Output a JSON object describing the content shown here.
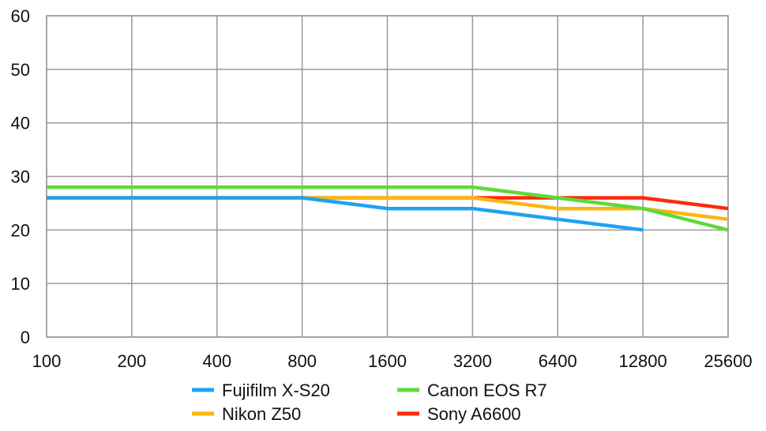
{
  "chart_data": {
    "type": "line",
    "title": "",
    "xlabel": "",
    "ylabel": "",
    "x": [
      "100",
      "200",
      "400",
      "800",
      "1600",
      "3200",
      "6400",
      "12800",
      "25600"
    ],
    "ylim": [
      0,
      60
    ],
    "yticks": [
      "0",
      "10",
      "20",
      "30",
      "40",
      "50",
      "60"
    ],
    "grid": true,
    "legend_position": "bottom",
    "series": [
      {
        "name": "Sony A6600",
        "color": "#ff2a0a",
        "values": [
          26,
          26,
          26,
          26,
          26,
          26,
          26,
          26,
          24
        ]
      },
      {
        "name": "Nikon Z50",
        "color": "#fdb60f",
        "values": [
          26,
          26,
          26,
          26,
          26,
          26,
          24,
          24,
          22
        ]
      },
      {
        "name": "Canon EOS R7",
        "color": "#5fd93a",
        "values": [
          28,
          28,
          28,
          28,
          28,
          28,
          26,
          24,
          20
        ]
      },
      {
        "name": "Fujifilm X-S20",
        "color": "#1ea2f2",
        "values": [
          26,
          26,
          26,
          26,
          24,
          24,
          22,
          20,
          null
        ]
      }
    ],
    "legend_order": [
      "Fujifilm X-S20",
      "Canon EOS R7",
      "Nikon Z50",
      "Sony A6600"
    ]
  }
}
